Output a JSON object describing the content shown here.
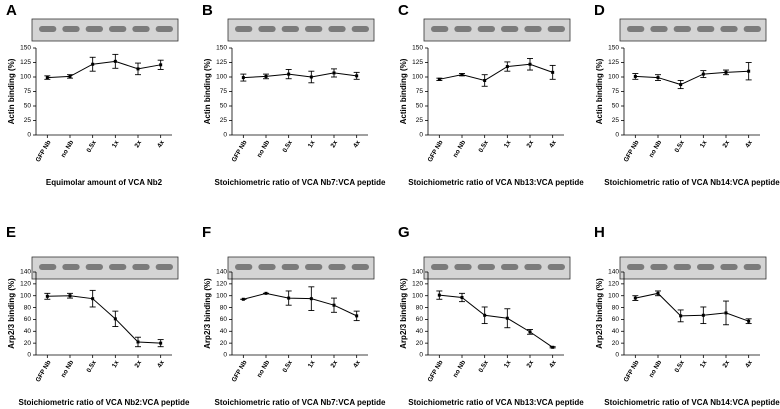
{
  "chart_data": [
    {
      "type": "line",
      "panel": "A",
      "ylabel": "Actin binding (%)",
      "xlabel": "Equimolar amount of VCA Nb2",
      "categories": [
        "GFP Nb",
        "no Nb",
        "0.5x",
        "1x",
        "2x",
        "4x"
      ],
      "values": [
        99,
        101,
        122,
        127,
        114,
        121
      ],
      "errors": [
        3,
        3,
        12,
        12,
        10,
        8
      ],
      "ylim": [
        0,
        150
      ],
      "yticks": [
        0,
        25,
        50,
        75,
        100,
        125,
        150
      ],
      "color": "#000000"
    },
    {
      "type": "line",
      "panel": "B",
      "ylabel": "Actin binding (%)",
      "xlabel": "Stoichiometric ratio of VCA Nb7:VCA peptide",
      "categories": [
        "GFP Nb",
        "no Nb",
        "0.5x",
        "1x",
        "2x",
        "4x"
      ],
      "values": [
        99,
        101,
        105,
        100,
        107,
        102
      ],
      "errors": [
        6,
        4,
        8,
        10,
        7,
        6
      ],
      "ylim": [
        0,
        150
      ],
      "yticks": [
        0,
        25,
        50,
        75,
        100,
        125,
        150
      ],
      "color": "#000000"
    },
    {
      "type": "line",
      "panel": "C",
      "ylabel": "Actin binding (%)",
      "xlabel": "Stoichiometric ratio of VCA Nb13:VCA peptide",
      "categories": [
        "GFP Nb",
        "no Nb",
        "0.5x",
        "1x",
        "2x",
        "4x"
      ],
      "values": [
        96,
        104,
        94,
        118,
        122,
        108
      ],
      "errors": [
        2,
        2,
        10,
        8,
        10,
        12
      ],
      "ylim": [
        0,
        150
      ],
      "yticks": [
        0,
        25,
        50,
        75,
        100,
        125,
        150
      ],
      "color": "#000000"
    },
    {
      "type": "line",
      "panel": "D",
      "ylabel": "Actin binding (%)",
      "xlabel": "Stoichiometric ratio of VCA Nb14:VCA peptide",
      "categories": [
        "GFP Nb",
        "no Nb",
        "0.5x",
        "1x",
        "2x",
        "4x"
      ],
      "values": [
        101,
        99,
        87,
        105,
        108,
        110
      ],
      "errors": [
        5,
        5,
        7,
        6,
        4,
        15
      ],
      "ylim": [
        0,
        150
      ],
      "yticks": [
        0,
        25,
        50,
        75,
        100,
        125,
        150
      ],
      "color": "#000000"
    },
    {
      "type": "line",
      "panel": "E",
      "ylabel": "Arp2/3 binding (%)",
      "xlabel": "Stoichiometric ratio of VCA Nb2:VCA peptide",
      "categories": [
        "GFP Nb",
        "no Nb",
        "0.5x",
        "1x",
        "2x",
        "4x"
      ],
      "values": [
        99,
        100,
        95,
        61,
        22,
        20
      ],
      "errors": [
        5,
        4,
        14,
        13,
        8,
        6
      ],
      "ylim": [
        0,
        140
      ],
      "yticks": [
        0,
        20,
        40,
        60,
        80,
        100,
        120,
        140
      ],
      "color": "#000000"
    },
    {
      "type": "line",
      "panel": "F",
      "ylabel": "Arp2/3 binding (%)",
      "xlabel": "Stoichiometric ratio of VCA Nb7:VCA peptide",
      "categories": [
        "GFP Nb",
        "no Nb",
        "0.5x",
        "1x",
        "2x",
        "4x"
      ],
      "values": [
        94,
        104,
        96,
        95,
        84,
        66
      ],
      "errors": [
        0,
        0,
        12,
        20,
        12,
        8
      ],
      "ylim": [
        0,
        140
      ],
      "yticks": [
        0,
        20,
        40,
        60,
        80,
        100,
        120,
        140
      ],
      "color": "#000000"
    },
    {
      "type": "line",
      "panel": "G",
      "ylabel": "Arp2/3 binding (%)",
      "xlabel": "Stoichiometric ratio of VCA Nb13:VCA peptide",
      "categories": [
        "GFP Nb",
        "no Nb",
        "0.5x",
        "1x",
        "2x",
        "4x"
      ],
      "values": [
        101,
        97,
        67,
        62,
        39,
        13
      ],
      "errors": [
        7,
        7,
        14,
        16,
        4,
        1
      ],
      "ylim": [
        0,
        140
      ],
      "yticks": [
        0,
        20,
        40,
        60,
        80,
        100,
        120,
        140
      ],
      "color": "#000000"
    },
    {
      "type": "line",
      "panel": "H",
      "ylabel": "Arp2/3 binding (%)",
      "xlabel": "Stoichiometric ratio of VCA Nb14:VCA peptide",
      "categories": [
        "GFP Nb",
        "no Nb",
        "0.5x",
        "1x",
        "2x",
        "4x"
      ],
      "values": [
        96,
        104,
        66,
        67,
        71,
        57
      ],
      "errors": [
        4,
        4,
        10,
        14,
        20,
        4
      ],
      "ylim": [
        0,
        140
      ],
      "yticks": [
        0,
        20,
        40,
        60,
        80,
        100,
        120,
        140
      ],
      "color": "#000000"
    }
  ]
}
